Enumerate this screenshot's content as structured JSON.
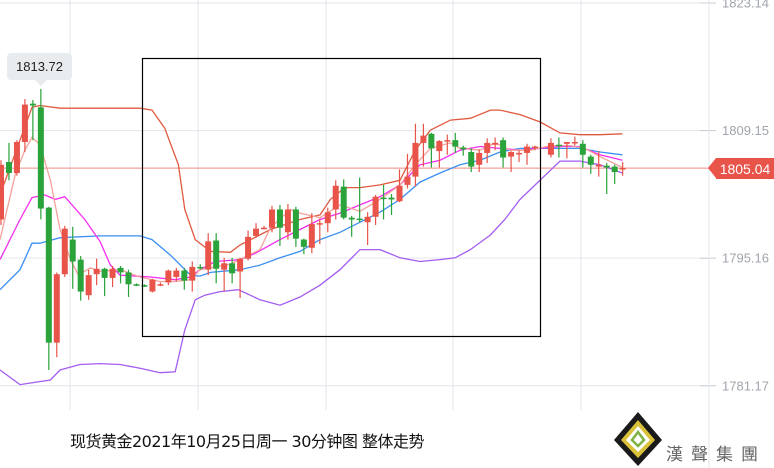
{
  "caption": "现货黄金2021年10月25日周一  30分钟图  整体走势",
  "tooltip_value": "1813.72",
  "current_price": "1805.04",
  "logo_text": "漢聲集團",
  "colors": {
    "up": "#e8544a",
    "down": "#2aa33a",
    "upper_band": "#e05a40",
    "lower_band": "#a45cf2",
    "ma_salmon": "#f4a19b",
    "ma_magenta": "#f52cf0",
    "ma_blue": "#3b8ff2",
    "price_line": "#f08a82",
    "annotation_box": "#000000"
  },
  "chart_data": {
    "type": "candlestick",
    "title": "",
    "ylim": [
      1778.5,
      1823.5
    ],
    "y_ticks": [
      "1823.14",
      "1809.15",
      "1795.16",
      "1781.17"
    ],
    "y_tick_values": [
      1823.14,
      1809.15,
      1795.16,
      1781.17
    ],
    "grid": true,
    "current_price": 1805.04,
    "candles_ohlc": [
      [
        1799.4,
        1805.9,
        1798.8,
        1805.4
      ],
      [
        1805.7,
        1807.8,
        1803.7,
        1804.5
      ],
      [
        1804.5,
        1808.1,
        1804.2,
        1807.9
      ],
      [
        1807.9,
        1812.6,
        1806.8,
        1812.0
      ],
      [
        1812.1,
        1812.5,
        1808.1,
        1811.9
      ],
      [
        1811.7,
        1813.72,
        1799.4,
        1800.6
      ],
      [
        1800.7,
        1800.8,
        1782.9,
        1785.9
      ],
      [
        1785.9,
        1793.6,
        1784.3,
        1793.4
      ],
      [
        1793.4,
        1798.7,
        1793.1,
        1798.4
      ],
      [
        1797.2,
        1798.6,
        1791.8,
        1794.8
      ],
      [
        1795.0,
        1795.4,
        1790.5,
        1791.5
      ],
      [
        1791.1,
        1793.9,
        1790.6,
        1793.3
      ],
      [
        1793.4,
        1795.1,
        1792.2,
        1794.0
      ],
      [
        1794.0,
        1794.1,
        1791.0,
        1793.0
      ],
      [
        1793.0,
        1794.3,
        1792.0,
        1794.0
      ],
      [
        1794.1,
        1794.3,
        1792.4,
        1793.6
      ],
      [
        1793.6,
        1793.9,
        1790.9,
        1792.3
      ],
      [
        1792.3,
        1792.4,
        1792.1,
        1792.2
      ],
      [
        1792.2,
        1792.3,
        1792.0,
        1792.1
      ],
      [
        1791.5,
        1792.9,
        1791.4,
        1792.8
      ],
      [
        1792.3,
        1792.5,
        1792.1,
        1792.3
      ],
      [
        1792.5,
        1793.9,
        1792.2,
        1793.8
      ],
      [
        1793.1,
        1794.1,
        1792.6,
        1793.8
      ],
      [
        1793.8,
        1794.1,
        1791.7,
        1792.7
      ],
      [
        1792.7,
        1794.8,
        1791.5,
        1794.2
      ],
      [
        1794.2,
        1794.5,
        1793.9,
        1794.1
      ],
      [
        1793.9,
        1797.9,
        1793.3,
        1797.0
      ],
      [
        1797.1,
        1797.9,
        1792.4,
        1794.0
      ],
      [
        1793.9,
        1795.2,
        1791.5,
        1794.6
      ],
      [
        1794.6,
        1795.2,
        1792.4,
        1793.5
      ],
      [
        1793.7,
        1795.2,
        1790.8,
        1795.1
      ],
      [
        1795.1,
        1798.2,
        1794.9,
        1797.5
      ],
      [
        1797.6,
        1799.0,
        1797.4,
        1798.4
      ],
      [
        1798.5,
        1798.7,
        1798.3,
        1798.5
      ],
      [
        1798.5,
        1800.9,
        1798.0,
        1800.5
      ],
      [
        1800.5,
        1801.0,
        1796.5,
        1798.5
      ],
      [
        1798.0,
        1801.1,
        1797.2,
        1800.5
      ],
      [
        1800.5,
        1800.8,
        1796.4,
        1797.3
      ],
      [
        1797.2,
        1797.3,
        1795.6,
        1796.4
      ],
      [
        1796.3,
        1800.1,
        1795.7,
        1798.9
      ],
      [
        1798.9,
        1799.5,
        1796.7,
        1799.0
      ],
      [
        1799.0,
        1800.7,
        1798.0,
        1800.2
      ],
      [
        1800.5,
        1803.7,
        1799.4,
        1803.1
      ],
      [
        1803.0,
        1803.8,
        1799.4,
        1799.6
      ],
      [
        1799.6,
        1799.8,
        1797.5,
        1799.4
      ],
      [
        1799.5,
        1804.0,
        1799.1,
        1799.4
      ],
      [
        1799.1,
        1800.2,
        1796.6,
        1799.7
      ],
      [
        1799.7,
        1802.1,
        1798.8,
        1801.9
      ],
      [
        1801.8,
        1803.2,
        1799.4,
        1801.7
      ],
      [
        1801.8,
        1802.2,
        1799.9,
        1801.6
      ],
      [
        1801.4,
        1804.9,
        1801.3,
        1803.1
      ],
      [
        1803.2,
        1806.6,
        1802.8,
        1804.1
      ],
      [
        1804.1,
        1809.9,
        1803.0,
        1807.8
      ],
      [
        1807.8,
        1809.9,
        1805.2,
        1808.6
      ],
      [
        1808.8,
        1808.9,
        1805.1,
        1807.2
      ],
      [
        1806.9,
        1808.1,
        1805.1,
        1808.0
      ],
      [
        1808.0,
        1808.7,
        1806.5,
        1808.1
      ],
      [
        1808.1,
        1808.9,
        1806.7,
        1807.4
      ],
      [
        1807.3,
        1807.5,
        1806.4,
        1807.1
      ],
      [
        1806.8,
        1807.2,
        1804.6,
        1805.2
      ],
      [
        1805.4,
        1807.1,
        1804.6,
        1806.7
      ],
      [
        1806.7,
        1808.3,
        1805.6,
        1807.8
      ],
      [
        1807.6,
        1808.4,
        1807.0,
        1807.8
      ],
      [
        1808.1,
        1808.4,
        1805.1,
        1806.2
      ],
      [
        1806.3,
        1806.9,
        1804.6,
        1806.8
      ],
      [
        1806.6,
        1807.0,
        1805.7,
        1806.7
      ],
      [
        1806.7,
        1807.7,
        1805.4,
        1807.4
      ],
      [
        1807.3,
        1807.5,
        1807.0,
        1807.4
      ],
      null,
      [
        1806.5,
        1808.3,
        1806.2,
        1807.8
      ],
      [
        1807.6,
        1808.4,
        1806.2,
        1807.5
      ],
      [
        1807.7,
        1807.9,
        1806.1,
        1807.9
      ],
      [
        1807.8,
        1808.5,
        1807.5,
        1807.9
      ],
      [
        1807.7,
        1808.1,
        1805.1,
        1806.5
      ],
      [
        1806.3,
        1806.5,
        1804.4,
        1805.4
      ],
      [
        1805.2,
        1806.9,
        1804.1,
        1805.4
      ],
      [
        1805.3,
        1805.6,
        1802.2,
        1805.1
      ],
      [
        1805.2,
        1805.4,
        1803.3,
        1804.6
      ],
      [
        1804.9,
        1805.7,
        1804.2,
        1805.04
      ]
    ],
    "indicator_lines": {
      "upper_band": [
        [
          0,
          1802.1
        ],
        [
          2.5,
          1808.1
        ],
        [
          4,
          1811.7
        ],
        [
          5,
          1811.9
        ],
        [
          7.5,
          1811.6
        ],
        [
          12.5,
          1811.6
        ],
        [
          17.5,
          1811.6
        ],
        [
          19,
          1811.4
        ],
        [
          20.6,
          1809.4
        ],
        [
          22.3,
          1805.4
        ],
        [
          23.1,
          1800.5
        ],
        [
          24.4,
          1797.2
        ],
        [
          26.3,
          1795.9
        ],
        [
          28.8,
          1795.8
        ],
        [
          30,
          1796.6
        ],
        [
          33.8,
          1798.3
        ],
        [
          37.5,
          1799.4
        ],
        [
          40,
          1799.9
        ],
        [
          41.3,
          1801.6
        ],
        [
          43.1,
          1802.9
        ],
        [
          45,
          1802.9
        ],
        [
          47.5,
          1803.2
        ],
        [
          50,
          1803.7
        ],
        [
          51.9,
          1807.0
        ],
        [
          53.8,
          1809.2
        ],
        [
          56.3,
          1810.3
        ],
        [
          58.8,
          1810.5
        ],
        [
          61.3,
          1811.4
        ],
        [
          62.5,
          1811.4
        ],
        [
          65,
          1810.9
        ],
        [
          67.5,
          1810.1
        ],
        [
          70,
          1808.9
        ],
        [
          72.5,
          1808.7
        ],
        [
          75,
          1808.7
        ],
        [
          77.8,
          1808.8
        ]
      ],
      "lower_band": [
        [
          0,
          1782.9
        ],
        [
          2.5,
          1781.3
        ],
        [
          6.3,
          1781.8
        ],
        [
          7.5,
          1782.9
        ],
        [
          10,
          1783.5
        ],
        [
          12.5,
          1783.6
        ],
        [
          15,
          1783.5
        ],
        [
          17.5,
          1783.1
        ],
        [
          20,
          1782.6
        ],
        [
          21.9,
          1782.7
        ],
        [
          23.1,
          1787.3
        ],
        [
          24.4,
          1790.6
        ],
        [
          25.6,
          1791.1
        ],
        [
          27.5,
          1791.5
        ],
        [
          29.8,
          1791.7
        ],
        [
          32.5,
          1790.6
        ],
        [
          35,
          1790.0
        ],
        [
          37.5,
          1790.9
        ],
        [
          40,
          1792.2
        ],
        [
          42.5,
          1793.9
        ],
        [
          45,
          1796.1
        ],
        [
          47.5,
          1796.1
        ],
        [
          50,
          1795.2
        ],
        [
          52.5,
          1794.8
        ],
        [
          55,
          1795.0
        ],
        [
          56.9,
          1795.2
        ],
        [
          58.8,
          1796.1
        ],
        [
          61.3,
          1797.7
        ],
        [
          63.1,
          1799.4
        ],
        [
          65,
          1801.6
        ],
        [
          66.9,
          1803.2
        ],
        [
          68.8,
          1804.8
        ],
        [
          70,
          1805.8
        ],
        [
          72.5,
          1805.8
        ],
        [
          75,
          1805.4
        ],
        [
          77.8,
          1804.5
        ]
      ],
      "ma_blue": [
        [
          0,
          1791.7
        ],
        [
          2.5,
          1793.9
        ],
        [
          4,
          1796.8
        ],
        [
          5,
          1796.8
        ],
        [
          7.5,
          1797.4
        ],
        [
          12.5,
          1797.6
        ],
        [
          17.5,
          1797.6
        ],
        [
          19,
          1797.2
        ],
        [
          21.3,
          1795.5
        ],
        [
          23.8,
          1793.3
        ],
        [
          25,
          1793.2
        ],
        [
          26.3,
          1793.6
        ],
        [
          30,
          1793.9
        ],
        [
          32.5,
          1794.4
        ],
        [
          35,
          1795.2
        ],
        [
          37.5,
          1795.9
        ],
        [
          40,
          1797.2
        ],
        [
          42.5,
          1798.0
        ],
        [
          45,
          1799.1
        ],
        [
          47.5,
          1800.2
        ],
        [
          50,
          1801.6
        ],
        [
          52.5,
          1803.5
        ],
        [
          55,
          1804.5
        ],
        [
          57.5,
          1805.4
        ],
        [
          60,
          1805.9
        ],
        [
          62.5,
          1806.8
        ],
        [
          65,
          1807.2
        ],
        [
          68.8,
          1807.2
        ],
        [
          72.5,
          1807.2
        ],
        [
          75,
          1806.8
        ],
        [
          77.8,
          1806.5
        ]
      ],
      "ma_magenta": [
        [
          0,
          1795.0
        ],
        [
          2.5,
          1799.4
        ],
        [
          4,
          1801.8
        ],
        [
          5.6,
          1802.1
        ],
        [
          6.9,
          1801.6
        ],
        [
          8.1,
          1801.9
        ],
        [
          10.6,
          1799.4
        ],
        [
          12.5,
          1797.0
        ],
        [
          13.8,
          1794.4
        ],
        [
          15,
          1793.3
        ],
        [
          18.8,
          1793.1
        ],
        [
          21.9,
          1792.8
        ],
        [
          23.8,
          1793.1
        ],
        [
          25,
          1793.9
        ],
        [
          26.9,
          1794.8
        ],
        [
          30,
          1795.0
        ],
        [
          31.9,
          1795.7
        ],
        [
          35,
          1797.2
        ],
        [
          37.5,
          1798.3
        ],
        [
          40,
          1799.4
        ],
        [
          42.5,
          1800.1
        ],
        [
          45,
          1801.0
        ],
        [
          47.5,
          1801.9
        ],
        [
          50,
          1803.2
        ],
        [
          52.5,
          1805.4
        ],
        [
          55,
          1805.9
        ],
        [
          57.5,
          1807.0
        ],
        [
          60,
          1807.4
        ],
        [
          65,
          1807.0
        ],
        [
          70,
          1807.4
        ],
        [
          72.5,
          1807.4
        ],
        [
          75,
          1806.5
        ],
        [
          77.8,
          1805.9
        ]
      ],
      "ma_salmon": [
        [
          0,
          1797.2
        ],
        [
          1.9,
          1804.3
        ],
        [
          3.1,
          1807.0
        ],
        [
          4,
          1808.4
        ],
        [
          5,
          1807.6
        ],
        [
          6.3,
          1803.7
        ],
        [
          7.5,
          1798.3
        ],
        [
          8.8,
          1795.0
        ],
        [
          9.8,
          1793.3
        ],
        [
          11.3,
          1794.1
        ],
        [
          12.5,
          1793.7
        ],
        [
          15,
          1793.9
        ],
        [
          17.5,
          1793.1
        ],
        [
          20,
          1792.6
        ],
        [
          21.9,
          1792.6
        ],
        [
          23.8,
          1792.8
        ],
        [
          25,
          1793.9
        ],
        [
          28.8,
          1794.5
        ],
        [
          32.5,
          1796.1
        ],
        [
          33.8,
          1798.5
        ],
        [
          36.3,
          1800.5
        ],
        [
          37.5,
          1800.1
        ],
        [
          40,
          1799.6
        ],
        [
          42.5,
          1801.0
        ],
        [
          45,
          1800.3
        ],
        [
          47.5,
          1801.6
        ],
        [
          50,
          1803.2
        ],
        [
          51.9,
          1805.4
        ],
        [
          53.8,
          1807.2
        ],
        [
          56.3,
          1807.8
        ],
        [
          57.5,
          1807.2
        ],
        [
          60,
          1807.0
        ],
        [
          61.9,
          1807.8
        ],
        [
          63.8,
          1807.0
        ],
        [
          66.3,
          1807.0
        ],
        [
          68.8,
          1807.5
        ],
        [
          71.3,
          1807.5
        ],
        [
          73.1,
          1807.2
        ],
        [
          75,
          1806.3
        ],
        [
          77.8,
          1805.1
        ]
      ]
    }
  }
}
